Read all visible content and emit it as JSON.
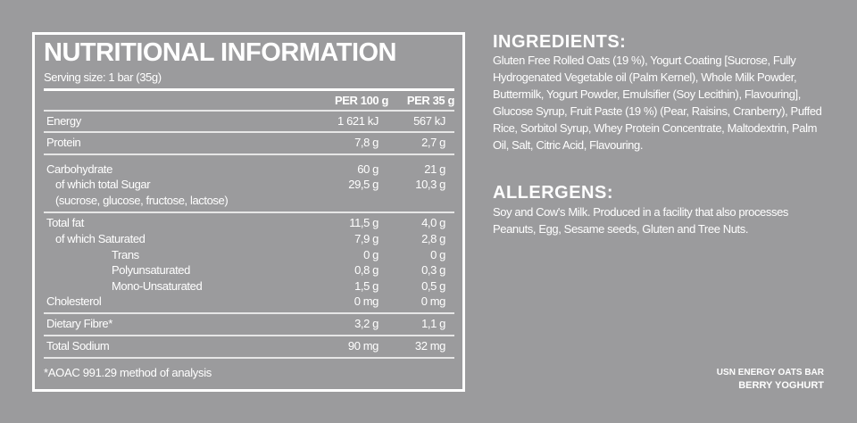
{
  "nutrition": {
    "title": "NUTRITIONAL INFORMATION",
    "serving": "Serving size: 1 bar (35g)",
    "col_headers": [
      "PER 100 g",
      "PER 35 g"
    ],
    "rows": [
      {
        "label": "Energy",
        "per100": "1 621 kJ",
        "per35": "567 kJ"
      },
      {
        "label": "Protein",
        "per100": "7,8 g",
        "per35": "2,7 g"
      },
      {
        "label": "Carbohydrate",
        "per100": "60 g",
        "per35": "21 g"
      },
      {
        "label": "of which total Sugar",
        "per100": "29,5 g",
        "per35": "10,3 g"
      },
      {
        "label": "(sucrose, glucose, fructose, lactose)"
      },
      {
        "label": "Total fat",
        "per100": "11,5 g",
        "per35": "4,0 g"
      },
      {
        "label": "of which Saturated",
        "per100": "7,9 g",
        "per35": "2,8 g"
      },
      {
        "label": "Trans",
        "per100": "0 g",
        "per35": "0 g"
      },
      {
        "label": "Polyunsaturated",
        "per100": "0,8 g",
        "per35": "0,3 g"
      },
      {
        "label": "Mono-Unsaturated",
        "per100": "1,5 g",
        "per35": "0,5 g"
      },
      {
        "label": "Cholesterol",
        "per100": "0 mg",
        "per35": "0 mg"
      },
      {
        "label": "Dietary Fibre*",
        "per100": "3,2 g",
        "per35": "1,1 g"
      },
      {
        "label": "Total Sodium",
        "per100": "90 mg",
        "per35": "32 mg"
      }
    ],
    "footnote": "*AOAC 991.29 method of analysis"
  },
  "ingredients": {
    "heading": "INGREDIENTS:",
    "text": "Gluten Free Rolled Oats (19 %), Yogurt Coating [Sucrose, Fully Hydrogenated Vegetable oil (Palm Kernel), Whole Milk Powder, Buttermilk, Yogurt Powder, Emulsifier (Soy Lecithin), Flavouring], Glucose Syrup, Fruit Paste (19 %) (Pear, Raisins, Cranberry), Puffed Rice, Sorbitol Syrup, Whey Protein Concentrate, Maltodextrin, Palm Oil, Salt, Citric Acid, Flavouring."
  },
  "allergens": {
    "heading": "ALLERGENS:",
    "text": "Soy and Cow's Milk. Produced in a facility that also processes Peanuts, Egg, Sesame seeds, Gluten and Tree Nuts."
  },
  "product": {
    "name": "USN ENERGY OATS BAR",
    "flavour": "BERRY YOGHURT"
  },
  "colors": {
    "background": "#9b9b9d",
    "text": "#ffffff"
  }
}
